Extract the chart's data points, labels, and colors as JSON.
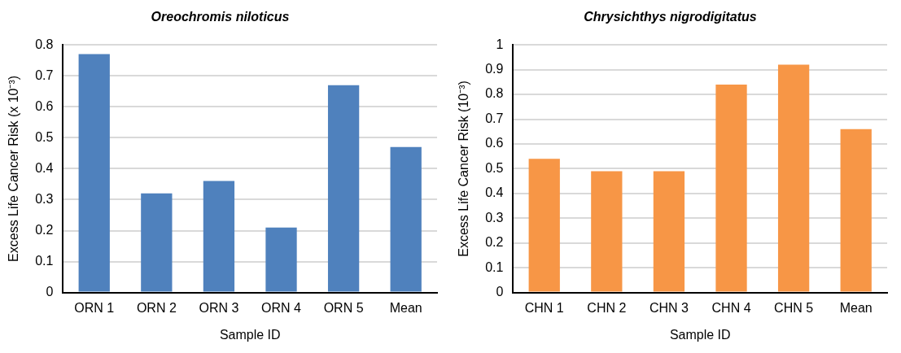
{
  "chart_data": [
    {
      "type": "bar",
      "title": "Oreochromis niloticus",
      "xlabel": "Sample ID",
      "ylabel": "Excess Life Cancer Risk (x 10⁻³)",
      "categories": [
        "ORN 1",
        "ORN 2",
        "ORN 3",
        "ORN 4",
        "ORN 5",
        "Mean"
      ],
      "values": [
        0.77,
        0.32,
        0.36,
        0.21,
        0.67,
        0.47
      ],
      "color": "#4f81bd",
      "ylim": [
        0,
        0.8
      ],
      "yticks": [
        0,
        0.1,
        0.2,
        0.3,
        0.4,
        0.5,
        0.6,
        0.7,
        0.8
      ],
      "grid": "y"
    },
    {
      "type": "bar",
      "title": "Chrysichthys nigrodigitatus",
      "xlabel": "Sample ID",
      "ylabel": "Excess Life Cancer Risk (10⁻³)",
      "categories": [
        "CHN 1",
        "CHN 2",
        "CHN 3",
        "CHN 4",
        "CHN 5",
        "Mean"
      ],
      "values": [
        0.54,
        0.49,
        0.49,
        0.84,
        0.92,
        0.66
      ],
      "color": "#f79646",
      "ylim": [
        0,
        1
      ],
      "yticks": [
        0,
        0.1,
        0.2,
        0.3,
        0.4,
        0.5,
        0.6,
        0.7,
        0.8,
        0.9,
        1
      ],
      "grid": "y"
    }
  ]
}
